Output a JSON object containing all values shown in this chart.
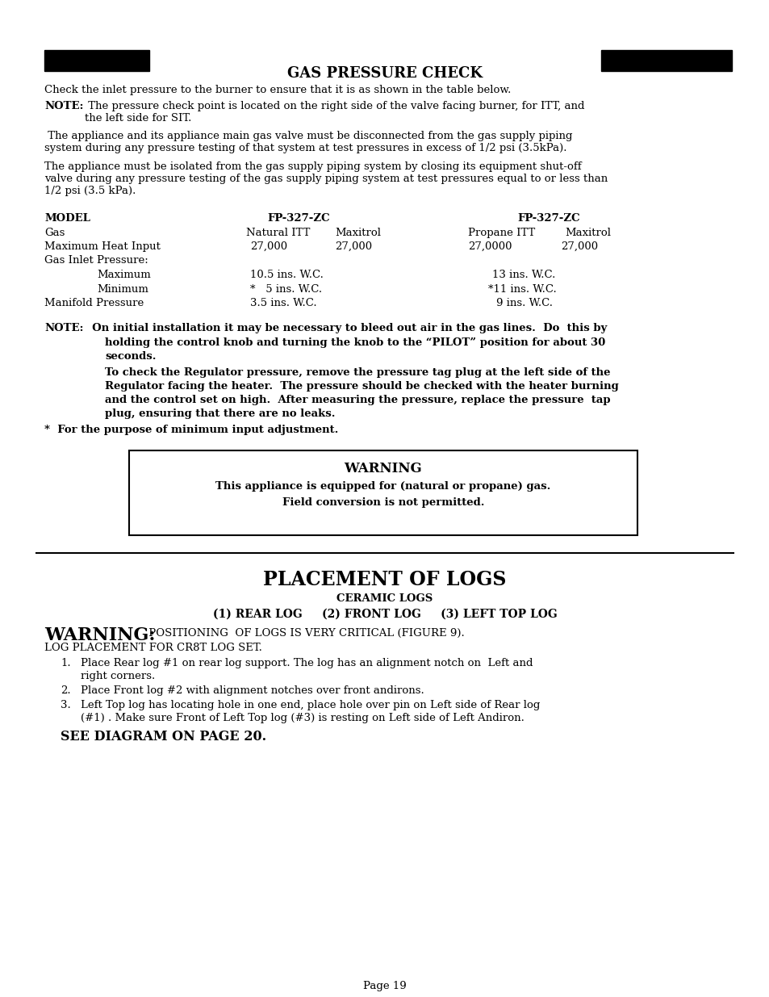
{
  "bg_color": "#ffffff",
  "title_section": "GAS PRESSURE CHECK",
  "para1": "Check the inlet pressure to the burner to ensure that it is as shown in the table below.",
  "note1_bold": "NOTE:",
  "note1_rest": " The pressure check point is located on the right side of the valve facing burner, for ITT, and\nthe left side for SIT.",
  "para2": " The appliance and its appliance main gas valve must be disconnected from the gas supply piping\nsystem during any pressure testing of that system at test pressures in excess of 1/2 psi (3.5kPa).",
  "para3": "The appliance must be isolated from the gas supply piping system by closing its equipment shut-off\nvalve during any pressure testing of the gas supply piping system at test pressures equal to or less than\n1/2 psi (3.5 kPa).",
  "warning_title": "WARNING",
  "warning_line1": "This appliance is equipped for (natural or propane) gas.",
  "warning_line2": "Field conversion is not permitted.",
  "section2_title": "PLACEMENT OF LOGS",
  "section2_subtitle": "CERAMIC LOGS",
  "section2_line2": "(1) REAR LOG     (2) FRONT LOG     (3) LEFT TOP LOG",
  "warning_large": "WARNING:",
  "warning_large_text": " POSITIONING  OF LOGS IS VERY CRITICAL (FIGURE 9).",
  "log_line1": "LOG PLACEMENT FOR CR8T LOG SET.",
  "see_diagram": "SEE DIAGRAM ON PAGE 20.",
  "page_num": "Page 19",
  "star_note": "*  For the purpose of minimum input adjustment."
}
